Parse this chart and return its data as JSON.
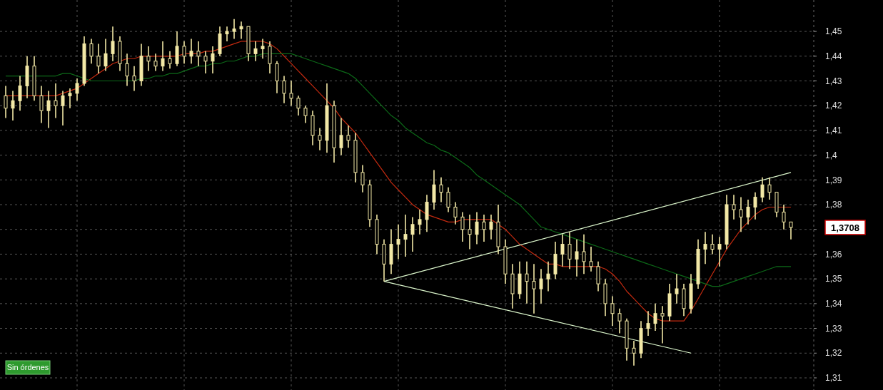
{
  "chart_data": {
    "type": "candlestick",
    "color": "#f2e8a6",
    "categories": [
      null,
      null,
      null,
      null,
      null,
      null,
      null,
      null,
      null,
      null,
      null,
      null,
      null,
      null,
      null,
      null,
      null,
      null,
      null,
      null,
      null,
      null,
      null,
      null,
      null,
      null,
      null,
      null,
      null,
      null,
      null,
      null,
      null,
      null,
      null,
      null,
      null,
      null,
      null,
      null,
      null,
      null,
      null,
      null,
      null,
      null,
      null,
      null,
      null,
      null,
      null,
      null,
      null,
      null,
      null,
      null,
      null,
      null,
      null,
      null,
      null,
      null,
      null,
      null,
      null,
      null,
      null,
      null,
      null,
      null,
      null,
      null,
      null,
      null,
      null,
      null,
      null,
      null,
      null,
      null,
      null,
      null,
      null,
      null,
      null,
      null,
      null,
      null,
      null,
      null,
      null,
      null,
      null,
      null,
      null,
      null,
      null,
      null,
      null,
      null,
      null,
      null,
      null,
      null,
      null,
      null,
      null,
      null,
      null,
      null,
      null
    ],
    "ohlc": [
      [
        1.424,
        1.428,
        1.415,
        1.419
      ],
      [
        1.419,
        1.426,
        1.414,
        1.422
      ],
      [
        1.422,
        1.432,
        1.418,
        1.428
      ],
      [
        1.428,
        1.44,
        1.423,
        1.436
      ],
      [
        1.436,
        1.44,
        1.422,
        1.424
      ],
      [
        1.424,
        1.428,
        1.413,
        1.418
      ],
      [
        1.418,
        1.426,
        1.411,
        1.422
      ],
      [
        1.422,
        1.429,
        1.415,
        1.42
      ],
      [
        1.42,
        1.426,
        1.412,
        1.424
      ],
      [
        1.424,
        1.427,
        1.419,
        1.425
      ],
      [
        1.425,
        1.431,
        1.422,
        1.429
      ],
      [
        1.429,
        1.448,
        1.428,
        1.445
      ],
      [
        1.445,
        1.447,
        1.437,
        1.44
      ],
      [
        1.44,
        1.445,
        1.433,
        1.436
      ],
      [
        1.436,
        1.447,
        1.434,
        1.441
      ],
      [
        1.441,
        1.452,
        1.438,
        1.446
      ],
      [
        1.446,
        1.448,
        1.434,
        1.437
      ],
      [
        1.437,
        1.441,
        1.428,
        1.432
      ],
      [
        1.432,
        1.436,
        1.426,
        1.43
      ],
      [
        1.43,
        1.445,
        1.428,
        1.44
      ],
      [
        1.44,
        1.444,
        1.434,
        1.438
      ],
      [
        1.438,
        1.441,
        1.434,
        1.436
      ],
      [
        1.436,
        1.446,
        1.434,
        1.439
      ],
      [
        1.439,
        1.442,
        1.435,
        1.437
      ],
      [
        1.437,
        1.45,
        1.436,
        1.444
      ],
      [
        1.444,
        1.446,
        1.437,
        1.44
      ],
      [
        1.44,
        1.447,
        1.437,
        1.442
      ],
      [
        1.442,
        1.446,
        1.436,
        1.44
      ],
      [
        1.44,
        1.442,
        1.433,
        1.438
      ],
      [
        1.438,
        1.444,
        1.433,
        1.441
      ],
      [
        1.441,
        1.452,
        1.44,
        1.449
      ],
      [
        1.449,
        1.452,
        1.446,
        1.45
      ],
      [
        1.45,
        1.455,
        1.447,
        1.451
      ],
      [
        1.451,
        1.454,
        1.447,
        1.452
      ],
      [
        1.452,
        1.452,
        1.438,
        1.441
      ],
      [
        1.441,
        1.446,
        1.438,
        1.443
      ],
      [
        1.443,
        1.447,
        1.439,
        1.444
      ],
      [
        1.444,
        1.446,
        1.433,
        1.437
      ],
      [
        1.437,
        1.438,
        1.425,
        1.43
      ],
      [
        1.43,
        1.432,
        1.421,
        1.425
      ],
      [
        1.425,
        1.43,
        1.42,
        1.423
      ],
      [
        1.423,
        1.424,
        1.416,
        1.419
      ],
      [
        1.419,
        1.42,
        1.413,
        1.416
      ],
      [
        1.416,
        1.418,
        1.404,
        1.408
      ],
      [
        1.408,
        1.411,
        1.402,
        1.406
      ],
      [
        1.406,
        1.429,
        1.401,
        1.42
      ],
      [
        1.42,
        1.422,
        1.397,
        1.403
      ],
      [
        1.403,
        1.415,
        1.4,
        1.408
      ],
      [
        1.408,
        1.412,
        1.403,
        1.406
      ],
      [
        1.406,
        1.409,
        1.389,
        1.393
      ],
      [
        1.393,
        1.396,
        1.385,
        1.388
      ],
      [
        1.388,
        1.39,
        1.371,
        1.374
      ],
      [
        1.374,
        1.376,
        1.36,
        1.364
      ],
      [
        1.364,
        1.366,
        1.349,
        1.356
      ],
      [
        1.356,
        1.37,
        1.352,
        1.364
      ],
      [
        1.364,
        1.372,
        1.358,
        1.366
      ],
      [
        1.366,
        1.376,
        1.359,
        1.368
      ],
      [
        1.368,
        1.375,
        1.361,
        1.372
      ],
      [
        1.372,
        1.378,
        1.368,
        1.374
      ],
      [
        1.374,
        1.384,
        1.369,
        1.381
      ],
      [
        1.381,
        1.394,
        1.378,
        1.388
      ],
      [
        1.388,
        1.391,
        1.381,
        1.385
      ],
      [
        1.385,
        1.387,
        1.377,
        1.379
      ],
      [
        1.379,
        1.381,
        1.372,
        1.375
      ],
      [
        1.375,
        1.377,
        1.365,
        1.37
      ],
      [
        1.37,
        1.376,
        1.362,
        1.368
      ],
      [
        1.368,
        1.377,
        1.364,
        1.373
      ],
      [
        1.373,
        1.376,
        1.365,
        1.37
      ],
      [
        1.37,
        1.376,
        1.366,
        1.373
      ],
      [
        1.373,
        1.38,
        1.36,
        1.363
      ],
      [
        1.363,
        1.366,
        1.348,
        1.352
      ],
      [
        1.352,
        1.356,
        1.338,
        1.344
      ],
      [
        1.344,
        1.357,
        1.342,
        1.352
      ],
      [
        1.352,
        1.357,
        1.34,
        1.349
      ],
      [
        1.349,
        1.356,
        1.336,
        1.346
      ],
      [
        1.346,
        1.354,
        1.34,
        1.35
      ],
      [
        1.35,
        1.357,
        1.345,
        1.352
      ],
      [
        1.352,
        1.365,
        1.35,
        1.36
      ],
      [
        1.36,
        1.368,
        1.355,
        1.364
      ],
      [
        1.364,
        1.369,
        1.354,
        1.358
      ],
      [
        1.358,
        1.366,
        1.351,
        1.361
      ],
      [
        1.361,
        1.368,
        1.352,
        1.357
      ],
      [
        1.357,
        1.363,
        1.353,
        1.355
      ],
      [
        1.355,
        1.357,
        1.345,
        1.348
      ],
      [
        1.348,
        1.35,
        1.335,
        1.34
      ],
      [
        1.34,
        1.343,
        1.331,
        1.336
      ],
      [
        1.336,
        1.338,
        1.328,
        1.333
      ],
      [
        1.333,
        1.334,
        1.317,
        1.322
      ],
      [
        1.322,
        1.325,
        1.315,
        1.32
      ],
      [
        1.32,
        1.333,
        1.318,
        1.33
      ],
      [
        1.33,
        1.337,
        1.327,
        1.332
      ],
      [
        1.332,
        1.34,
        1.329,
        1.336
      ],
      [
        1.336,
        1.339,
        1.324,
        1.335
      ],
      [
        1.335,
        1.348,
        1.333,
        1.344
      ],
      [
        1.344,
        1.352,
        1.34,
        1.346
      ],
      [
        1.346,
        1.348,
        1.335,
        1.338
      ],
      [
        1.338,
        1.352,
        1.336,
        1.348
      ],
      [
        1.348,
        1.366,
        1.346,
        1.362
      ],
      [
        1.362,
        1.369,
        1.356,
        1.364
      ],
      [
        1.364,
        1.368,
        1.36,
        1.362
      ],
      [
        1.362,
        1.367,
        1.355,
        1.364
      ],
      [
        1.364,
        1.384,
        1.362,
        1.38
      ],
      [
        1.38,
        1.384,
        1.374,
        1.378
      ],
      [
        1.378,
        1.383,
        1.369,
        1.375
      ],
      [
        1.375,
        1.382,
        1.372,
        1.379
      ],
      [
        1.379,
        1.385,
        1.374,
        1.383
      ],
      [
        1.383,
        1.391,
        1.381,
        1.388
      ],
      [
        1.388,
        1.391,
        1.382,
        1.385
      ],
      [
        1.385,
        1.385,
        1.375,
        1.377
      ],
      [
        1.377,
        1.38,
        1.37,
        1.373
      ],
      [
        1.373,
        1.373,
        1.366,
        1.3708
      ]
    ],
    "series": [
      {
        "type": "line",
        "color": "#c42a10",
        "values": [
          1.424,
          1.424,
          1.424,
          1.424,
          1.424,
          1.424,
          1.424,
          1.424,
          1.425,
          1.426,
          1.427,
          1.429,
          1.431,
          1.433,
          1.435,
          1.437,
          1.438,
          1.439,
          1.439,
          1.44,
          1.44,
          1.44,
          1.44,
          1.44,
          1.44,
          1.441,
          1.441,
          1.441,
          1.442,
          1.442,
          1.443,
          1.444,
          1.445,
          1.446,
          1.446,
          1.446,
          1.446,
          1.445,
          1.443,
          1.44,
          1.437,
          1.434,
          1.431,
          1.428,
          1.425,
          1.422,
          1.419,
          1.415,
          1.412,
          1.409,
          1.405,
          1.401,
          1.397,
          1.393,
          1.389,
          1.386,
          1.383,
          1.38,
          1.378,
          1.376,
          1.375,
          1.374,
          1.373,
          1.373,
          1.374,
          1.374,
          1.374,
          1.374,
          1.374,
          1.372,
          1.37,
          1.367,
          1.364,
          1.362,
          1.36,
          1.358,
          1.356,
          1.356,
          1.355,
          1.355,
          1.355,
          1.355,
          1.355,
          1.355,
          1.354,
          1.352,
          1.349,
          1.345,
          1.342,
          1.339,
          1.336,
          1.334,
          1.333,
          1.333,
          1.333,
          1.333,
          1.337,
          1.342,
          1.347,
          1.352,
          1.357,
          1.362,
          1.366,
          1.37,
          1.373,
          1.376,
          1.378,
          1.379,
          1.379,
          1.379,
          1.379
        ]
      },
      {
        "type": "line",
        "color": "#0c6a18",
        "values": [
          1.432,
          1.432,
          1.432,
          1.432,
          1.432,
          1.432,
          1.432,
          1.432,
          1.433,
          1.433,
          1.432,
          1.431,
          1.43,
          1.43,
          1.43,
          1.43,
          1.43,
          1.43,
          1.43,
          1.431,
          1.431,
          1.432,
          1.432,
          1.433,
          1.433,
          1.434,
          1.435,
          1.436,
          1.436,
          1.437,
          1.437,
          1.438,
          1.438,
          1.439,
          1.44,
          1.44,
          1.441,
          1.441,
          1.441,
          1.441,
          1.441,
          1.44,
          1.439,
          1.438,
          1.437,
          1.436,
          1.435,
          1.434,
          1.433,
          1.431,
          1.428,
          1.425,
          1.422,
          1.419,
          1.416,
          1.414,
          1.411,
          1.409,
          1.407,
          1.405,
          1.404,
          1.402,
          1.401,
          1.399,
          1.397,
          1.395,
          1.392,
          1.39,
          1.388,
          1.386,
          1.384,
          1.382,
          1.38,
          1.377,
          1.374,
          1.371,
          1.37,
          1.369,
          1.368,
          1.367,
          1.366,
          1.365,
          1.364,
          1.363,
          1.362,
          1.361,
          1.36,
          1.359,
          1.358,
          1.357,
          1.356,
          1.355,
          1.354,
          1.353,
          1.352,
          1.351,
          1.35,
          1.349,
          1.348,
          1.347,
          1.347,
          1.348,
          1.349,
          1.35,
          1.351,
          1.352,
          1.353,
          1.354,
          1.355,
          1.355,
          1.355
        ]
      },
      {
        "type": "line",
        "color": "#dcf7cc",
        "values": [
          null,
          null,
          null,
          null,
          null,
          null,
          null,
          null,
          null,
          null,
          null,
          null,
          null,
          null,
          null,
          null,
          null,
          null,
          null,
          null,
          null,
          null,
          null,
          null,
          null,
          null,
          null,
          null,
          null,
          null,
          null,
          null,
          null,
          null,
          null,
          null,
          null,
          null,
          null,
          null,
          null,
          null,
          null,
          null,
          null,
          null,
          null,
          null,
          null,
          null,
          null,
          null,
          null,
          1.349,
          null,
          null,
          null,
          null,
          null,
          null,
          null,
          null,
          null,
          null,
          null,
          null,
          null,
          null,
          null,
          null,
          null,
          null,
          null,
          null,
          null,
          null,
          null,
          null,
          null,
          null,
          null,
          null,
          null,
          null,
          null,
          null,
          null,
          null,
          null,
          null,
          null,
          null,
          null,
          null,
          null,
          null,
          null,
          null,
          null,
          null,
          null,
          null,
          null,
          null,
          null,
          null,
          null,
          null,
          null,
          null,
          1.393
        ]
      },
      {
        "type": "line",
        "color": "#dcf7cc",
        "values": [
          null,
          null,
          null,
          null,
          null,
          null,
          null,
          null,
          null,
          null,
          null,
          null,
          null,
          null,
          null,
          null,
          null,
          null,
          null,
          null,
          null,
          null,
          null,
          null,
          null,
          null,
          null,
          null,
          null,
          null,
          null,
          null,
          null,
          null,
          null,
          null,
          null,
          null,
          null,
          null,
          null,
          null,
          null,
          null,
          null,
          null,
          null,
          null,
          null,
          null,
          null,
          null,
          null,
          1.349,
          null,
          null,
          null,
          null,
          null,
          null,
          null,
          null,
          null,
          null,
          null,
          null,
          null,
          null,
          null,
          null,
          null,
          null,
          null,
          null,
          null,
          null,
          null,
          null,
          null,
          null,
          null,
          null,
          null,
          null,
          null,
          null,
          null,
          null,
          null,
          null,
          null,
          null,
          null,
          null,
          null,
          null,
          1.32,
          null,
          null,
          null,
          null,
          null,
          null,
          null,
          null,
          null,
          null,
          null,
          null,
          null,
          null
        ]
      }
    ],
    "ylim": [
      1.3051,
      1.4627
    ],
    "yticks": [
      {
        "value": 1.31,
        "label": "1,31"
      },
      {
        "value": 1.32,
        "label": "1,32"
      },
      {
        "value": 1.33,
        "label": "1,33"
      },
      {
        "value": 1.34,
        "label": "1,34"
      },
      {
        "value": 1.35,
        "label": "1,35"
      },
      {
        "value": 1.36,
        "label": "1,36"
      },
      {
        "value": 1.37,
        "label": null
      },
      {
        "value": 1.38,
        "label": "1,38"
      },
      {
        "value": 1.39,
        "label": "1,39"
      },
      {
        "value": 1.4,
        "label": "1,4"
      },
      {
        "value": 1.41,
        "label": "1,41"
      },
      {
        "value": 1.42,
        "label": "1,42"
      },
      {
        "value": 1.43,
        "label": "1,43"
      },
      {
        "value": 1.44,
        "label": "1,44"
      },
      {
        "value": 1.45,
        "label": "1,45"
      }
    ],
    "grid": true,
    "annotations": [
      "1,3708",
      "Sin órdenes"
    ]
  }
}
